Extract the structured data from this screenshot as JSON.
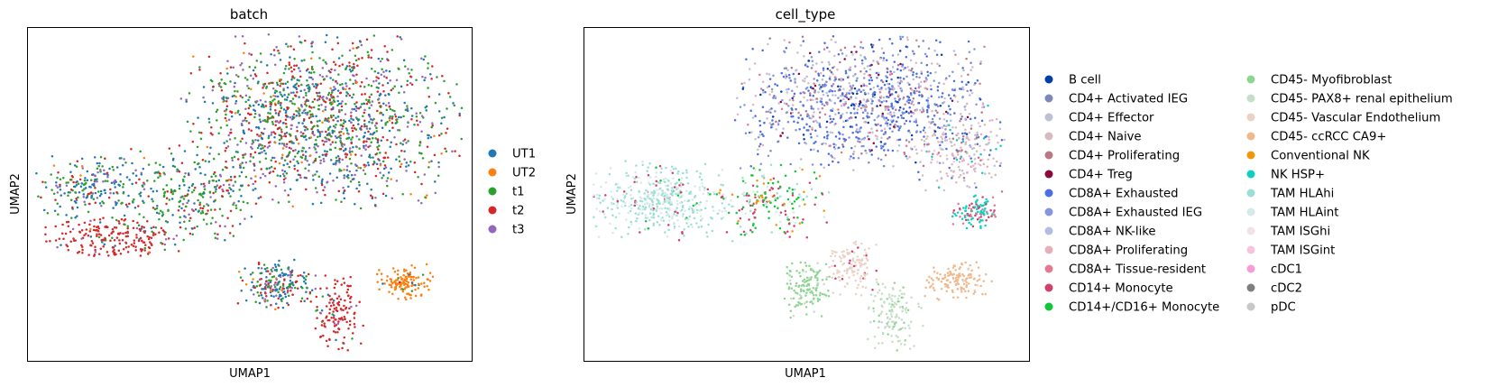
{
  "chart_data": [
    {
      "type": "scatter",
      "title": "batch",
      "xlabel": "UMAP1",
      "ylabel": "UMAP2",
      "xticks": [],
      "yticks": [],
      "grid": false,
      "legend_position": "right",
      "legend": [
        "UT1",
        "UT2",
        "t1",
        "t2",
        "t3"
      ],
      "colors": [
        "#1f77b4",
        "#ff7f0e",
        "#2ca02c",
        "#d62728",
        "#9467bd"
      ],
      "xlim": [
        0,
        100
      ],
      "ylim": [
        0,
        100
      ],
      "regions": [
        {
          "name": "main-cloud",
          "cx": 66,
          "cy": 72,
          "rx": 29,
          "ry": 24,
          "mix": [
            0.24,
            0.03,
            0.29,
            0.24,
            0.2
          ],
          "share": 0.55
        },
        {
          "name": "left-arm",
          "cx": 16,
          "cy": 52,
          "rx": 13,
          "ry": 9,
          "mix": [
            0.45,
            0.02,
            0.25,
            0.15,
            0.13
          ],
          "share": 0.09
        },
        {
          "name": "left-lower",
          "cx": 19,
          "cy": 37,
          "rx": 14,
          "ry": 6,
          "mix": [
            0.04,
            0.01,
            0.05,
            0.87,
            0.03
          ],
          "share": 0.08
        },
        {
          "name": "bridge",
          "cx": 38,
          "cy": 50,
          "rx": 14,
          "ry": 14,
          "mix": [
            0.18,
            0.02,
            0.45,
            0.2,
            0.15
          ],
          "share": 0.1
        },
        {
          "name": "ut2-cluster",
          "cx": 85,
          "cy": 24,
          "rx": 6,
          "ry": 5,
          "mix": [
            0.03,
            0.9,
            0.02,
            0.03,
            0.02
          ],
          "share": 0.05
        },
        {
          "name": "bottom-lobe",
          "cx": 70,
          "cy": 14,
          "rx": 5,
          "ry": 11,
          "mix": [
            0.04,
            0.01,
            0.04,
            0.88,
            0.03
          ],
          "share": 0.05
        },
        {
          "name": "lower-middle",
          "cx": 56,
          "cy": 23,
          "rx": 8,
          "ry": 7,
          "mix": [
            0.4,
            0.05,
            0.25,
            0.18,
            0.12
          ],
          "share": 0.08
        }
      ]
    },
    {
      "type": "scatter",
      "title": "cell_type",
      "xlabel": "UMAP1",
      "ylabel": "UMAP2",
      "xticks": [],
      "yticks": [],
      "grid": false,
      "legend_position": "right",
      "legend": [
        "B cell",
        "CD4+ Activated IEG",
        "CD4+ Effector",
        "CD4+ Naive",
        "CD4+ Proliferating",
        "CD4+ Treg",
        "CD8A+ Exhausted",
        "CD8A+ Exhausted IEG",
        "CD8A+ NK-like",
        "CD8A+ Proliferating",
        "CD8A+ Tissue-resident",
        "CD14+ Monocyte",
        "CD14+/CD16+ Monocyte",
        "CD45- Myofibroblast",
        "CD45- PAX8+ renal epithelium",
        "CD45- Vascular Endothelium",
        "CD45- ccRCC CA9+",
        "Conventional NK",
        "NK HSP+",
        "TAM HLAhi",
        "TAM HLAint",
        "TAM ISGhi",
        "TAM ISGint",
        "cDC1",
        "cDC2",
        "pDC"
      ],
      "colors": [
        "#023fa5",
        "#7d87b9",
        "#bec1d4",
        "#d6bcc0",
        "#bb7784",
        "#8e063b",
        "#4a6fe3",
        "#8595e1",
        "#b5bbe3",
        "#e6afb9",
        "#e07b91",
        "#d33f6a",
        "#11c638",
        "#8dd593",
        "#c6dec7",
        "#ead3c6",
        "#f0b98d",
        "#ef9708",
        "#0fcfc0",
        "#9cded6",
        "#d5eae7",
        "#f3e1eb",
        "#f6c4e1",
        "#f79cd4",
        "#7f7f7f",
        "#c7c7c7"
      ],
      "xlim": [
        0,
        100
      ],
      "ylim": [
        0,
        100
      ],
      "regions": [
        {
          "name": "tcell-cloud",
          "cx": 62,
          "cy": 78,
          "rx": 26,
          "ry": 19,
          "mix": {
            "6": 0.32,
            "7": 0.16,
            "1": 0.08,
            "8": 0.08,
            "2": 0.06,
            "3": 0.08,
            "4": 0.04,
            "5": 0.03,
            "0": 0.05,
            "9": 0.05,
            "10": 0.05
          },
          "share": 0.42
        },
        {
          "name": "right-mixed",
          "cx": 84,
          "cy": 64,
          "rx": 10,
          "ry": 12,
          "mix": {
            "3": 0.25,
            "9": 0.2,
            "2": 0.15,
            "4": 0.1,
            "6": 0.15,
            "22": 0.08,
            "18": 0.07
          },
          "share": 0.09
        },
        {
          "name": "tam-left",
          "cx": 17,
          "cy": 48,
          "rx": 15,
          "ry": 11,
          "mix": {
            "19": 0.5,
            "20": 0.4,
            "12": 0.05,
            "11": 0.05
          },
          "share": 0.17
        },
        {
          "name": "monocyte-mid",
          "cx": 42,
          "cy": 48,
          "rx": 12,
          "ry": 10,
          "mix": {
            "12": 0.35,
            "11": 0.2,
            "19": 0.2,
            "17": 0.1,
            "20": 0.15
          },
          "share": 0.08
        },
        {
          "name": "myofibroblast",
          "cx": 50,
          "cy": 22,
          "rx": 5,
          "ry": 9,
          "mix": {
            "13": 0.85,
            "14": 0.15
          },
          "share": 0.05
        },
        {
          "name": "endothelium",
          "cx": 60,
          "cy": 28,
          "rx": 6,
          "ry": 8,
          "mix": {
            "15": 0.9,
            "11": 0.1
          },
          "share": 0.05
        },
        {
          "name": "ca9-cluster",
          "cx": 84,
          "cy": 24,
          "rx": 7,
          "ry": 6,
          "mix": {
            "16": 0.95,
            "15": 0.05
          },
          "share": 0.05
        },
        {
          "name": "pax8-lobe",
          "cx": 70,
          "cy": 14,
          "rx": 6,
          "ry": 10,
          "mix": {
            "14": 0.8,
            "13": 0.2
          },
          "share": 0.05
        },
        {
          "name": "nk-cluster",
          "cx": 88,
          "cy": 45,
          "rx": 5,
          "ry": 5,
          "mix": {
            "18": 0.5,
            "11": 0.3,
            "10": 0.2
          },
          "share": 0.04
        }
      ]
    }
  ]
}
